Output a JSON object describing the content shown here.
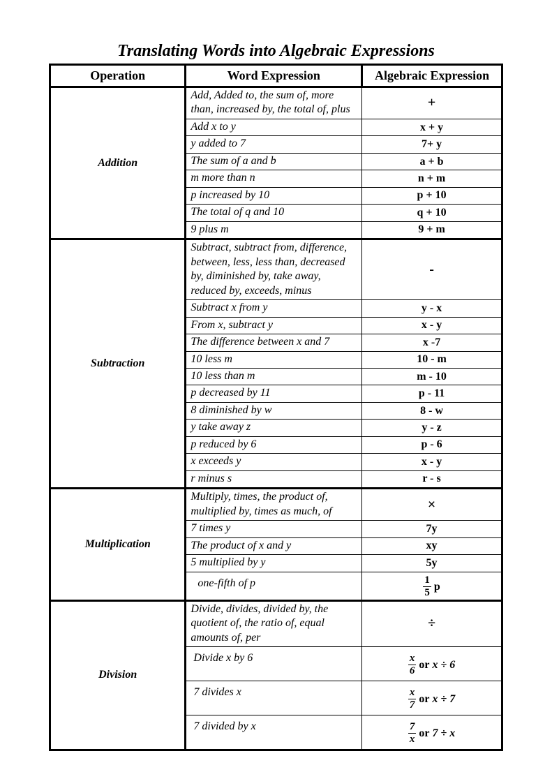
{
  "title": "Translating Words into Algebraic Expressions",
  "headers": {
    "col1": "Operation",
    "col2": "Word Expression",
    "col3": "Algebraic Expression"
  },
  "sections": {
    "addition": {
      "operation": "Addition",
      "symbol": "+",
      "intro": "Add, Added to, the sum of, more than, increased by, the total of, plus",
      "rows": [
        {
          "w": "Add x to y",
          "a": "x + y"
        },
        {
          "w": "y  added to 7",
          "a": "7+ y"
        },
        {
          "w": "The sum of a and b",
          "a": "a + b"
        },
        {
          "w": "m more than n",
          "a": "n + m"
        },
        {
          "w": "p increased by 10",
          "a": "p + 10"
        },
        {
          "w": "The total of q and 10",
          "a": "q + 10"
        },
        {
          "w": "9 plus m",
          "a": "9 + m"
        }
      ]
    },
    "subtraction": {
      "operation": "Subtraction",
      "symbol": "-",
      "intro": "Subtract, subtract from, difference, between, less, less than, decreased by, diminished by, take away, reduced by, exceeds, minus",
      "rows": [
        {
          "w": "Subtract x from y",
          "a": "y - x"
        },
        {
          "w": "From x, subtract y",
          "a": "x - y"
        },
        {
          "w": "The difference between x and 7",
          "a": "x -7"
        },
        {
          "w": "10 less m",
          "a": "10 - m"
        },
        {
          "w": "10 less than m",
          "a": "m - 10"
        },
        {
          "w": "p decreased by 11",
          "a": "p - 11"
        },
        {
          "w": "8 diminished by w",
          "a": "8 - w"
        },
        {
          "w": "y take away z",
          "a": "y - z"
        },
        {
          "w": "p reduced by 6",
          "a": "p - 6"
        },
        {
          "w": "x exceeds y",
          "a": "x - y"
        },
        {
          "w": "r minus s",
          "a": "r - s"
        }
      ]
    },
    "multiplication": {
      "operation": "Multiplication",
      "symbol": "×",
      "intro": "Multiply, times, the product of, multiplied by, times as much, of",
      "rows": [
        {
          "w": "7 times y",
          "a": "7y"
        },
        {
          "w": "The product of x and y",
          "a": "xy"
        },
        {
          "w": "5 multiplied by y",
          "a": "5y"
        }
      ],
      "fraction_row": {
        "w": "one-fifth of p",
        "num": "1",
        "den": "5",
        "rest": "p"
      }
    },
    "division": {
      "operation": "Division",
      "symbol": "÷",
      "intro": "Divide, divides, divided by, the quotient of, the ratio of, equal amounts of, per",
      "rows": [
        {
          "w": "Divide x by 6",
          "num": "x",
          "den": "6",
          "rest": "x ÷ 6"
        },
        {
          "w": "7 divides x",
          "num": "x",
          "den": "7",
          "rest": "x ÷ 7"
        },
        {
          "w": "7 divided by x",
          "num": "7",
          "den": "x",
          "rest": "7 ÷ x"
        }
      ],
      "or_word": "or"
    }
  }
}
